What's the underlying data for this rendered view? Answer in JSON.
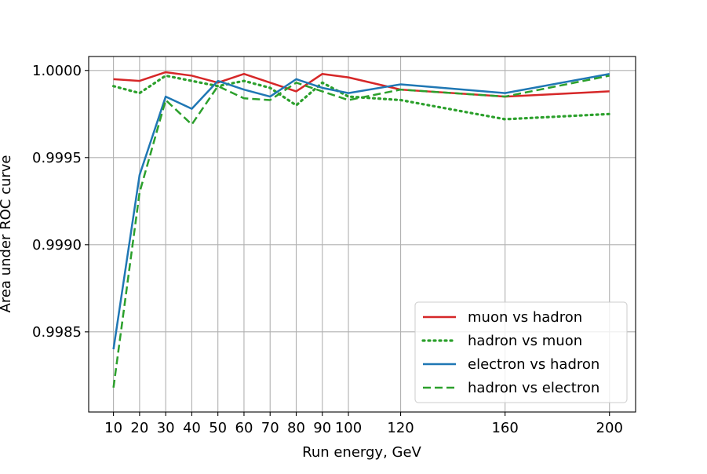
{
  "chart_data": {
    "type": "line",
    "title": "",
    "xlabel": "Run energy, GeV",
    "ylabel": "Area under ROC curve",
    "x": [
      10,
      20,
      30,
      40,
      50,
      60,
      70,
      80,
      90,
      100,
      120,
      160,
      200
    ],
    "xlim": [
      0.5,
      210
    ],
    "ylim": [
      0.99804,
      1.00008
    ],
    "xticks": [
      10,
      20,
      30,
      40,
      50,
      60,
      70,
      80,
      90,
      100,
      120,
      160,
      200
    ],
    "xtick_labels": [
      "10",
      "20",
      "30",
      "40",
      "50",
      "60",
      "70",
      "80",
      "90",
      "100",
      "120",
      "160",
      "200"
    ],
    "yticks": [
      0.9985,
      0.999,
      0.9995,
      1.0
    ],
    "ytick_labels": [
      "0.9985",
      "0.9990",
      "0.9995",
      "1.0000"
    ],
    "grid": true,
    "legend_position": "lower-right",
    "series": [
      {
        "name": "muon vs hadron",
        "color": "#d62728",
        "dash": "solid",
        "values": [
          0.99995,
          0.99994,
          0.99999,
          0.99997,
          0.99993,
          0.99998,
          0.99993,
          0.99988,
          0.99998,
          0.99996,
          0.99989,
          0.99985,
          0.99988
        ]
      },
      {
        "name": "hadron vs muon",
        "color": "#2ca02c",
        "dash": "dotted",
        "values": [
          0.99991,
          0.99987,
          0.99997,
          0.99994,
          0.99991,
          0.99994,
          0.9999,
          0.9998,
          0.99993,
          0.99985,
          0.99983,
          0.99972,
          0.99975
        ]
      },
      {
        "name": "electron vs hadron",
        "color": "#1f77b4",
        "dash": "solid",
        "values": [
          0.9984,
          0.9994,
          0.99985,
          0.99978,
          0.99994,
          0.99989,
          0.99985,
          0.99995,
          0.9999,
          0.99987,
          0.99992,
          0.99987,
          0.99998
        ]
      },
      {
        "name": "hadron vs electron",
        "color": "#2ca02c",
        "dash": "dashed",
        "values": [
          0.99818,
          0.9993,
          0.99983,
          0.99969,
          0.99991,
          0.99984,
          0.99983,
          0.99993,
          0.99988,
          0.99983,
          0.99989,
          0.99985,
          0.99997
        ]
      }
    ]
  }
}
